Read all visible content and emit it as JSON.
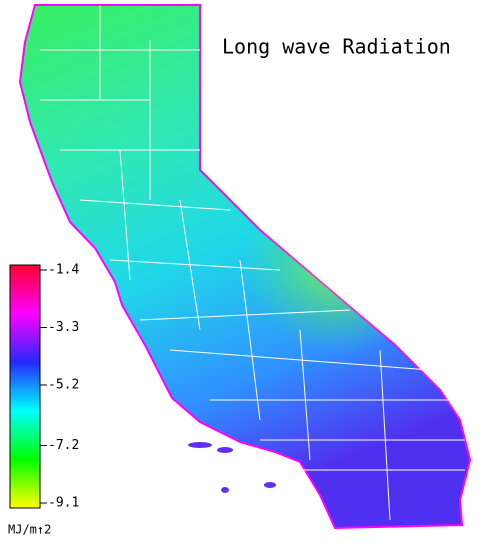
{
  "title": "Long wave Radiation",
  "colorbar": {
    "lim": [
      -9.1,
      -1.4
    ],
    "ticks": [
      -1.4,
      -3.3,
      -5.2,
      -7.2,
      -9.1
    ],
    "unit": "MJ/m↑2",
    "colors": [
      "#ff0030",
      "#ff00ff",
      "#2828ff",
      "#00ffff",
      "#00ff00",
      "#ffff00"
    ]
  }
}
